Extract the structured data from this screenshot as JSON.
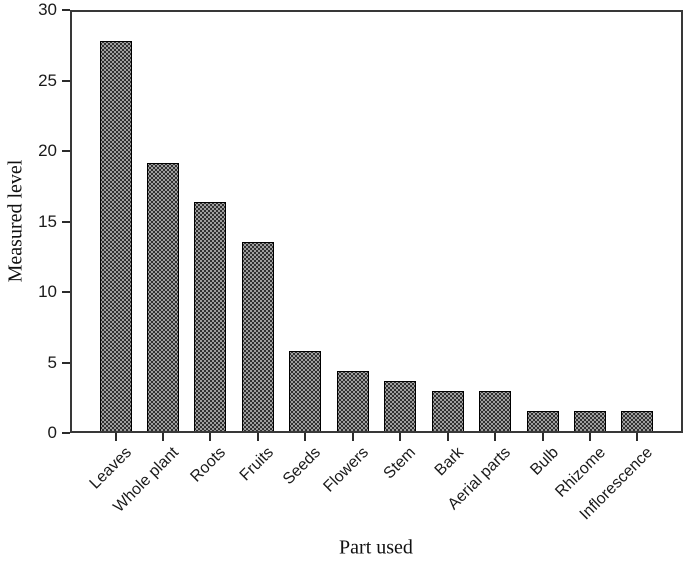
{
  "chart_data": {
    "type": "bar",
    "xlabel": "Part used",
    "ylabel": "Measured level",
    "categories": [
      "Leaves",
      "Whole plant",
      "Roots",
      "Fruits",
      "Seeds",
      "Flowers",
      "Stem",
      "Bark",
      "Aerial parts",
      "Bulb",
      "Rhizome",
      "Inflorescence"
    ],
    "values": [
      27.9,
      19.2,
      16.4,
      13.5,
      5.7,
      4.3,
      3.6,
      2.9,
      2.9,
      1.4,
      1.4,
      1.4
    ],
    "ylim": [
      0,
      30
    ],
    "yticks": [
      0,
      5,
      10,
      15,
      20,
      25,
      30
    ],
    "grid": false,
    "legend": false,
    "x_tick_rotation_deg": 45,
    "colors": {
      "bar_fill": "#141414",
      "bar_pattern_dot": "#c3c3c3",
      "bar_border": "#000000",
      "frame": "#383838",
      "text": "#1a1a1a"
    }
  }
}
